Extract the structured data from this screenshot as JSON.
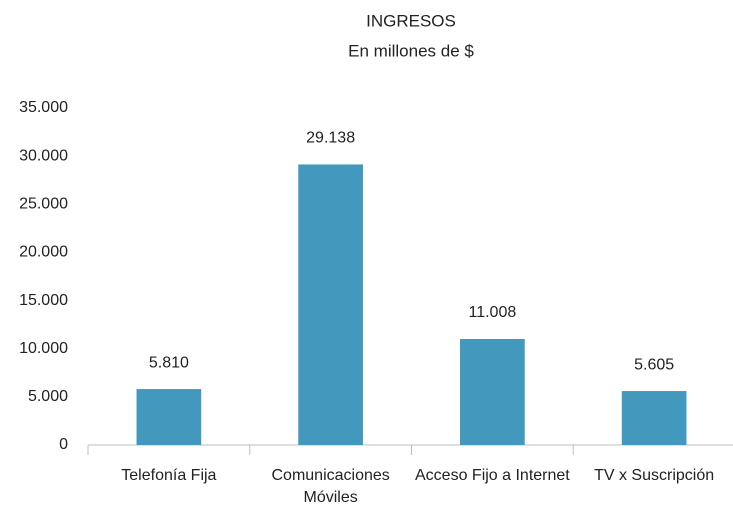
{
  "chart_data": {
    "type": "bar",
    "title": "INGRESOS",
    "subtitle": "En millones de $",
    "categories": [
      "Telefonía Fija",
      "Comunicaciones Móviles",
      "Acceso Fijo a Internet",
      "TV x Suscripción"
    ],
    "values": [
      5810,
      29138,
      11008,
      5605
    ],
    "value_labels": [
      "5.810",
      "29.138",
      "11.008",
      "5.605"
    ],
    "color": "#4399bd",
    "ylim": [
      0,
      35000
    ],
    "yticks": [
      0,
      {
        "value": 5000,
        "label": "5.000"
      },
      {
        "value": 10000,
        "label": "10.000"
      },
      {
        "value": 15000,
        "label": "15.000"
      },
      {
        "value": 20000,
        "label": "20.000"
      },
      {
        "value": 25000,
        "label": "25.000"
      },
      {
        "value": 30000,
        "label": "30.000"
      },
      {
        "value": 35000,
        "label": "35.000"
      }
    ],
    "grid": false
  }
}
